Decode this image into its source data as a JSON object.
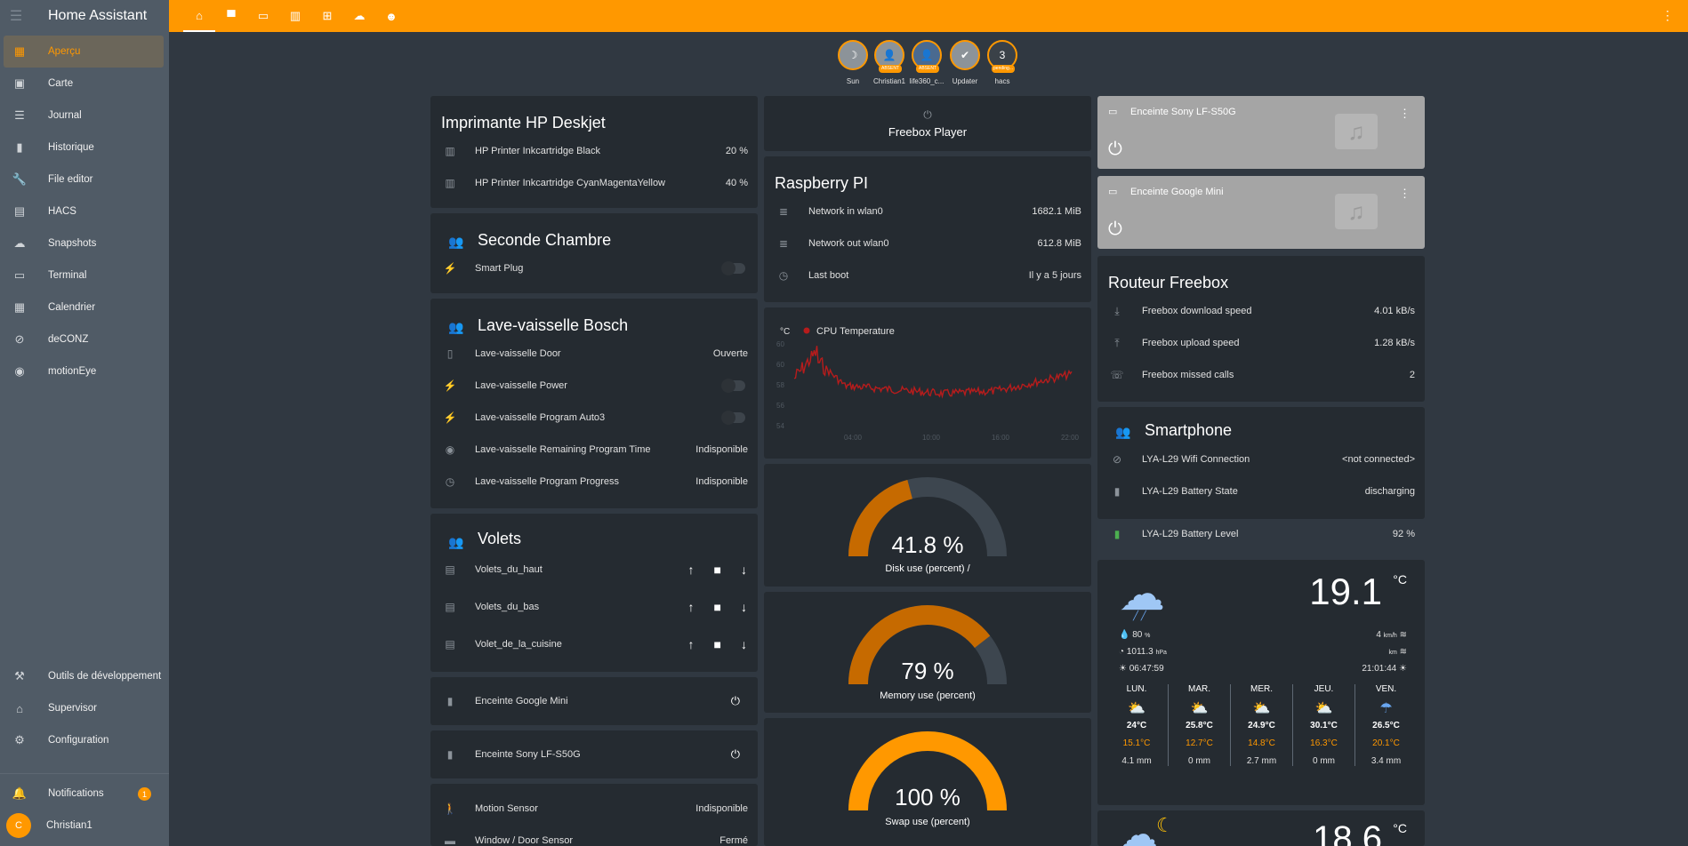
{
  "app": {
    "title": "Home Assistant"
  },
  "sidebar": {
    "items": [
      {
        "label": "Aperçu",
        "icon": "dashboard-icon"
      },
      {
        "label": "Carte",
        "icon": "map-icon"
      },
      {
        "label": "Journal",
        "icon": "journal-icon"
      },
      {
        "label": "Historique",
        "icon": "history-icon"
      },
      {
        "label": "File editor",
        "icon": "wrench-icon"
      },
      {
        "label": "HACS",
        "icon": "hacs-icon"
      },
      {
        "label": "Snapshots",
        "icon": "cloud-icon"
      },
      {
        "label": "Terminal",
        "icon": "terminal-icon"
      },
      {
        "label": "Calendrier",
        "icon": "calendar-icon"
      },
      {
        "label": "deCONZ",
        "icon": "deconz-icon"
      },
      {
        "label": "motionEye",
        "icon": "camera-icon"
      }
    ],
    "bottom": [
      {
        "label": "Outils de développement",
        "icon": "hammer-icon"
      },
      {
        "label": "Supervisor",
        "icon": "supervisor-icon"
      },
      {
        "label": "Configuration",
        "icon": "gear-icon"
      }
    ],
    "notifications": {
      "label": "Notifications",
      "count": "1"
    },
    "user": {
      "name": "Christian1",
      "initial": "C"
    }
  },
  "badges": [
    {
      "name": "Sun",
      "glyph": "☽",
      "tag": ""
    },
    {
      "name": "Christian1",
      "glyph": "👤",
      "tag": "ABSENT"
    },
    {
      "name": "life360_c...",
      "glyph": "👤",
      "tag": "ABSENT"
    },
    {
      "name": "Updater",
      "glyph": "✔",
      "tag": ""
    },
    {
      "name": "hacs",
      "glyph": "3",
      "tag": "pending..."
    }
  ],
  "printer": {
    "title": "Imprimante HP Deskjet",
    "rows": [
      {
        "name": "HP Printer Inkcartridge Black",
        "value": "20 %"
      },
      {
        "name": "HP Printer Inkcartridge CyanMagentaYellow",
        "value": "40 %"
      }
    ]
  },
  "seconde": {
    "title": "Seconde Chambre",
    "rows": [
      {
        "name": "Smart Plug"
      }
    ]
  },
  "lave": {
    "title": "Lave-vaisselle Bosch",
    "rows": [
      {
        "name": "Lave-vaisselle Door",
        "value": "Ouverte"
      },
      {
        "name": "Lave-vaisselle Power"
      },
      {
        "name": "Lave-vaisselle Program Auto3"
      },
      {
        "name": "Lave-vaisselle Remaining Program Time",
        "value": "Indisponible"
      },
      {
        "name": "Lave-vaisselle Program Progress",
        "value": "Indisponible"
      }
    ]
  },
  "volets": {
    "title": "Volets",
    "rows": [
      {
        "name": "Volets_du_haut"
      },
      {
        "name": "Volets_du_bas"
      },
      {
        "name": "Volet_de_la_cuisine"
      }
    ]
  },
  "google_mini": {
    "name": "Enceinte Google Mini"
  },
  "sony": {
    "name": "Enceinte Sony LF-S50G"
  },
  "sensors": {
    "rows": [
      {
        "name": "Motion Sensor",
        "value": "Indisponible"
      },
      {
        "name": "Window / Door Sensor",
        "value": "Fermé"
      }
    ]
  },
  "freebox_player": {
    "name": "Freebox Player"
  },
  "raspberry": {
    "title": "Raspberry PI",
    "rows": [
      {
        "name": "Network in wlan0",
        "value": "1682.1 MiB"
      },
      {
        "name": "Network out wlan0",
        "value": "612.8 MiB"
      },
      {
        "name": "Last boot",
        "value": "Il y a 5 jours"
      }
    ]
  },
  "chart_data": {
    "type": "line",
    "ylabel": "°C",
    "series": [
      {
        "name": "CPU Temperature",
        "color": "#b71c1c"
      }
    ],
    "yticks": [
      "60",
      "60",
      "58",
      "56",
      "54"
    ],
    "xticks": [
      "04:00",
      "10:00",
      "16:00",
      "22:00"
    ]
  },
  "gauges": [
    {
      "value": "41.8 %",
      "fraction": 0.418,
      "label": "Disk use (percent) /"
    },
    {
      "value": "79 %",
      "fraction": 0.79,
      "label": "Memory use (percent)"
    },
    {
      "value": "100 %",
      "fraction": 1.0,
      "label": "Swap use (percent)"
    }
  ],
  "media": [
    {
      "name": "Enceinte Sony LF-S50G"
    },
    {
      "name": "Enceinte Google Mini"
    }
  ],
  "routeur": {
    "title": "Routeur Freebox",
    "rows": [
      {
        "name": "Freebox download speed",
        "value": "4.01 kB/s"
      },
      {
        "name": "Freebox upload speed",
        "value": "1.28 kB/s"
      },
      {
        "name": "Freebox missed calls",
        "value": "2"
      }
    ]
  },
  "smartphone": {
    "title": "Smartphone",
    "rows": [
      {
        "name": "LYA-L29 Wifi Connection",
        "value": "<not connected>"
      },
      {
        "name": "LYA-L29 Battery State",
        "value": "discharging"
      }
    ],
    "battery": {
      "name": "LYA-L29 Battery Level",
      "value": "92 %"
    }
  },
  "weather": {
    "temp": "19.1",
    "unit": "°C",
    "humidity": "80",
    "humidity_unit": "%",
    "pressure": "1011.3",
    "pressure_unit": "hPa",
    "sunrise": "06:47:59",
    "wind": "4",
    "wind_unit": "km/h",
    "vis_unit": "km",
    "sunset": "21:01:44",
    "forecast": [
      {
        "day": "LUN.",
        "hi": "24°C",
        "lo": "15.1°C",
        "precip": "4.1 mm"
      },
      {
        "day": "MAR.",
        "hi": "25.8°C",
        "lo": "12.7°C",
        "precip": "0 mm"
      },
      {
        "day": "MER.",
        "hi": "24.9°C",
        "lo": "14.8°C",
        "precip": "2.7 mm"
      },
      {
        "day": "JEU.",
        "hi": "30.1°C",
        "lo": "16.3°C",
        "precip": "0 mm"
      },
      {
        "day": "VEN.",
        "hi": "26.5°C",
        "lo": "20.1°C",
        "precip": "3.4 mm"
      }
    ],
    "next_temp": "18.6",
    "next_unit": "°C"
  }
}
